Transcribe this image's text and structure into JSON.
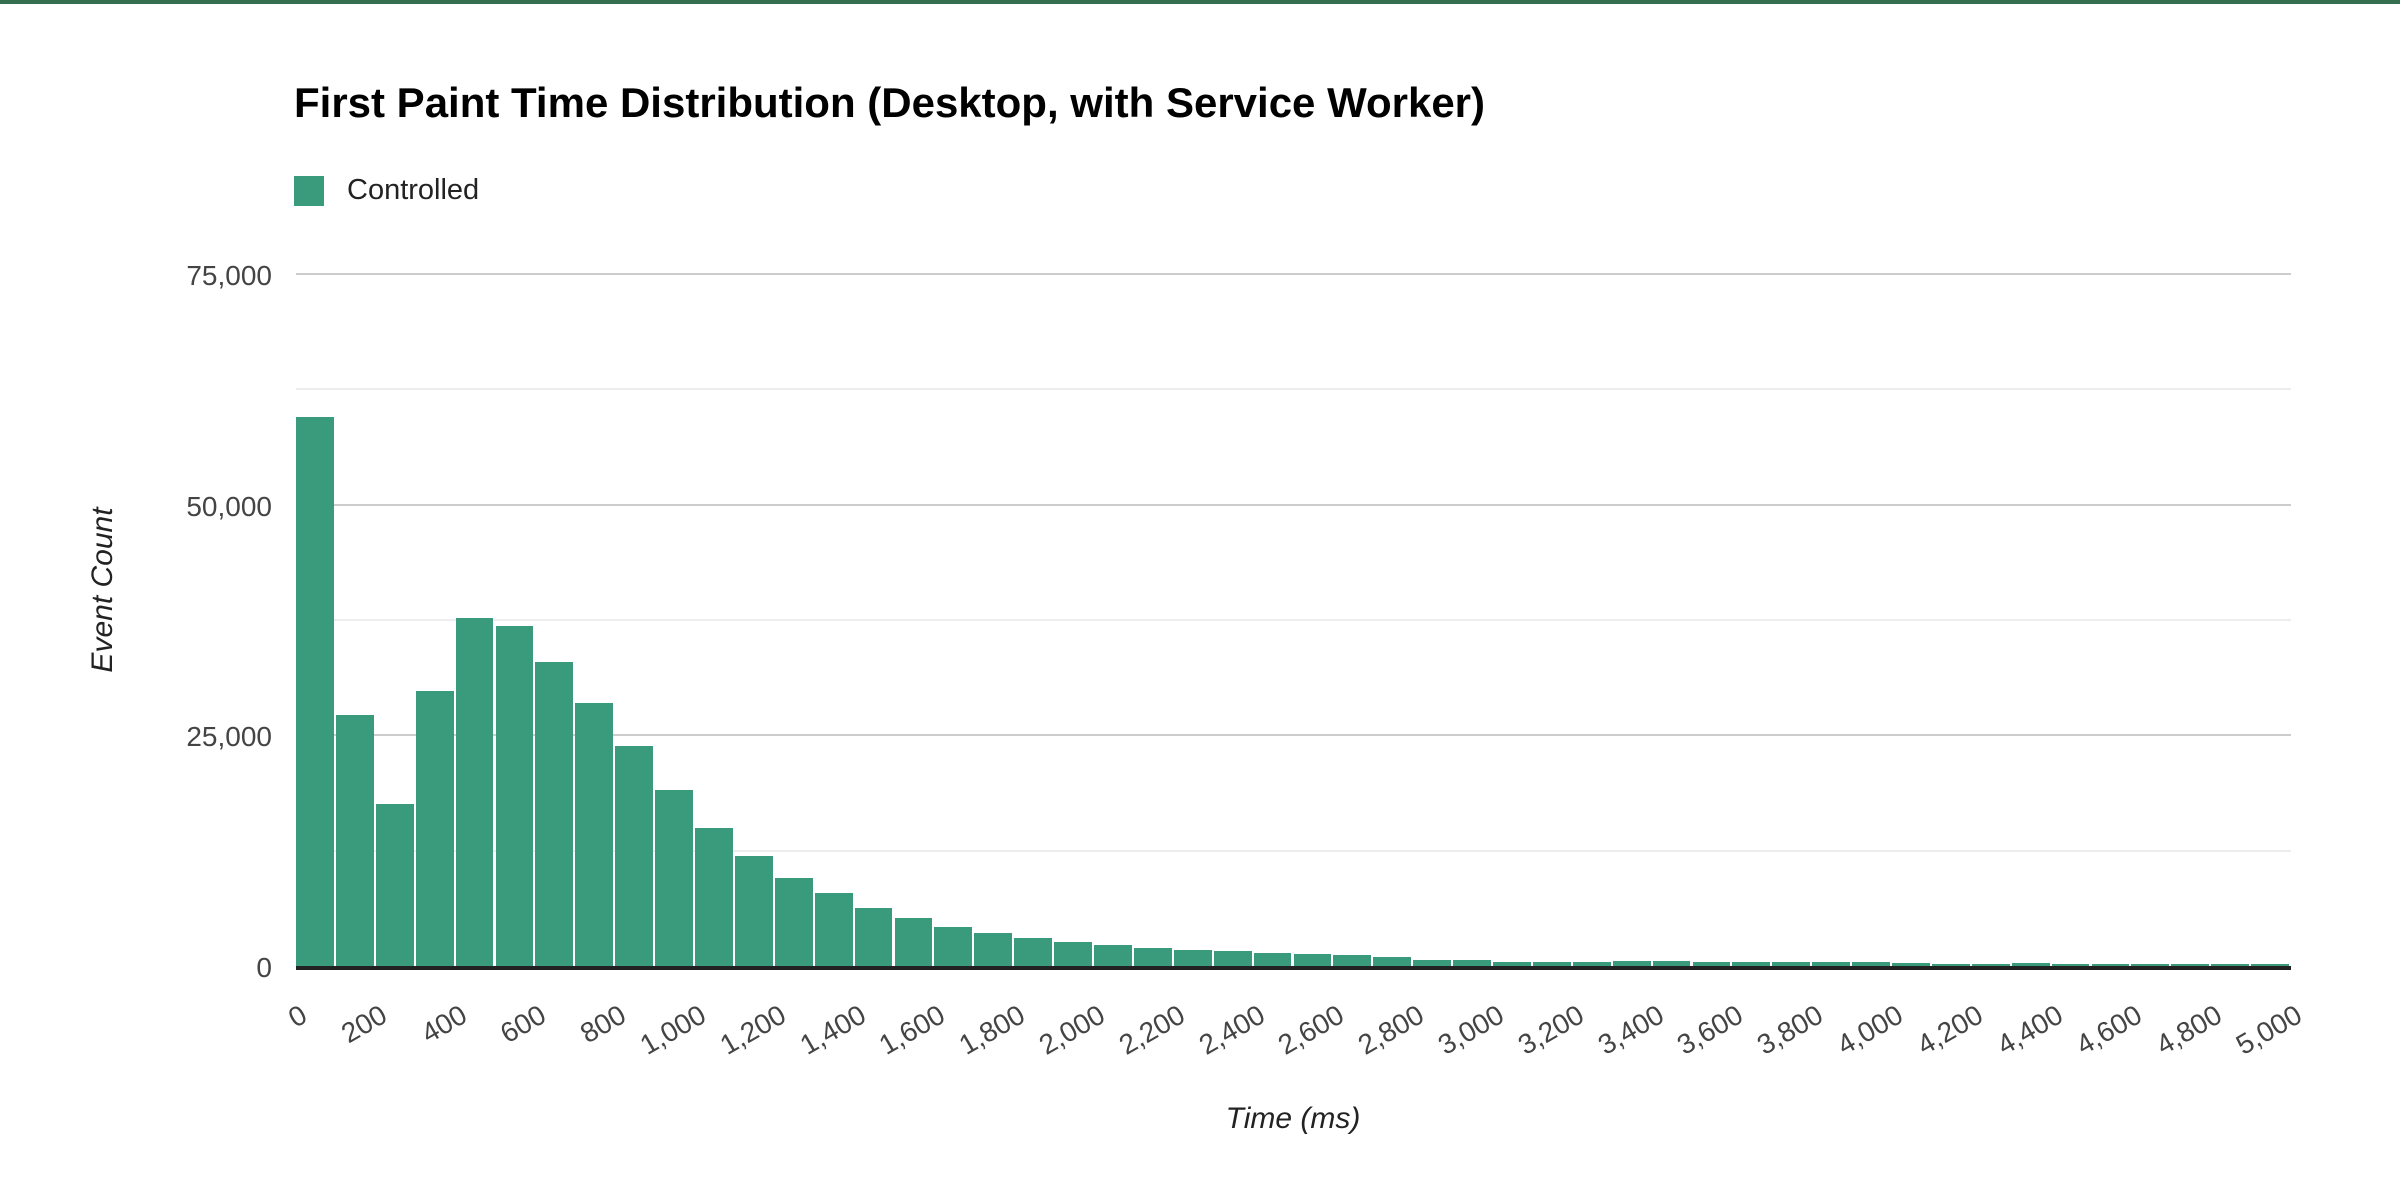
{
  "page": {
    "background": "#ffffff",
    "top_border_color": "#366f4f"
  },
  "colors": {
    "bar": "#3a9b7c",
    "grid_major": "#cccccc",
    "grid_minor": "#ededed",
    "axis_line": "#222222",
    "tick_label": "#444444",
    "title": "#000000",
    "axis_title": "#222222"
  },
  "chart_data": {
    "type": "bar",
    "title": "First Paint Time Distribution (Desktop, with Service Worker)",
    "xlabel": "Time (ms)",
    "ylabel": "Event Count",
    "grid": true,
    "legend_position": "top",
    "bin_width_ms": 100,
    "x_range": [
      0,
      5000
    ],
    "ylim": [
      0,
      75000
    ],
    "y_ticks": [
      {
        "value": 0,
        "label": "0"
      },
      {
        "value": 25000,
        "label": "25,000"
      },
      {
        "value": 50000,
        "label": "50,000"
      },
      {
        "value": 75000,
        "label": "75,000"
      }
    ],
    "y_minor_gridlines": [
      12500,
      37500,
      62500
    ],
    "x_ticks": [
      {
        "value": 0,
        "label": "0"
      },
      {
        "value": 200,
        "label": "200"
      },
      {
        "value": 400,
        "label": "400"
      },
      {
        "value": 600,
        "label": "600"
      },
      {
        "value": 800,
        "label": "800"
      },
      {
        "value": 1000,
        "label": "1,000"
      },
      {
        "value": 1200,
        "label": "1,200"
      },
      {
        "value": 1400,
        "label": "1,400"
      },
      {
        "value": 1600,
        "label": "1,600"
      },
      {
        "value": 1800,
        "label": "1,800"
      },
      {
        "value": 2000,
        "label": "2,000"
      },
      {
        "value": 2200,
        "label": "2,200"
      },
      {
        "value": 2400,
        "label": "2,400"
      },
      {
        "value": 2600,
        "label": "2,600"
      },
      {
        "value": 2800,
        "label": "2,800"
      },
      {
        "value": 3000,
        "label": "3,000"
      },
      {
        "value": 3200,
        "label": "3,200"
      },
      {
        "value": 3400,
        "label": "3,400"
      },
      {
        "value": 3600,
        "label": "3,600"
      },
      {
        "value": 3800,
        "label": "3,800"
      },
      {
        "value": 4000,
        "label": "4,000"
      },
      {
        "value": 4200,
        "label": "4,200"
      },
      {
        "value": 4400,
        "label": "4,400"
      },
      {
        "value": 4600,
        "label": "4,600"
      },
      {
        "value": 4800,
        "label": "4,800"
      },
      {
        "value": 5000,
        "label": "5,000"
      }
    ],
    "categories": [
      0,
      100,
      200,
      300,
      400,
      500,
      600,
      700,
      800,
      900,
      1000,
      1100,
      1200,
      1300,
      1400,
      1500,
      1600,
      1700,
      1800,
      1900,
      2000,
      2100,
      2200,
      2300,
      2400,
      2500,
      2600,
      2700,
      2800,
      2900,
      3000,
      3100,
      3200,
      3300,
      3400,
      3500,
      3600,
      3700,
      3800,
      3900,
      4000,
      4100,
      4200,
      4300,
      4400,
      4500,
      4600,
      4700,
      4800,
      4900
    ],
    "series": [
      {
        "name": "Controlled",
        "color": "#3a9b7c",
        "values": [
          59500,
          27200,
          17600,
          29800,
          37700,
          36800,
          33000,
          28500,
          23800,
          19100,
          15000,
          11900,
          9500,
          7900,
          6300,
          5200,
          4200,
          3600,
          3000,
          2600,
          2250,
          1950,
          1750,
          1600,
          1450,
          1300,
          1150,
          950,
          650,
          650,
          400,
          430,
          430,
          540,
          540,
          400,
          400,
          400,
          420,
          380,
          290,
          150,
          150,
          360,
          110,
          110,
          150,
          150,
          160,
          150
        ]
      }
    ]
  }
}
